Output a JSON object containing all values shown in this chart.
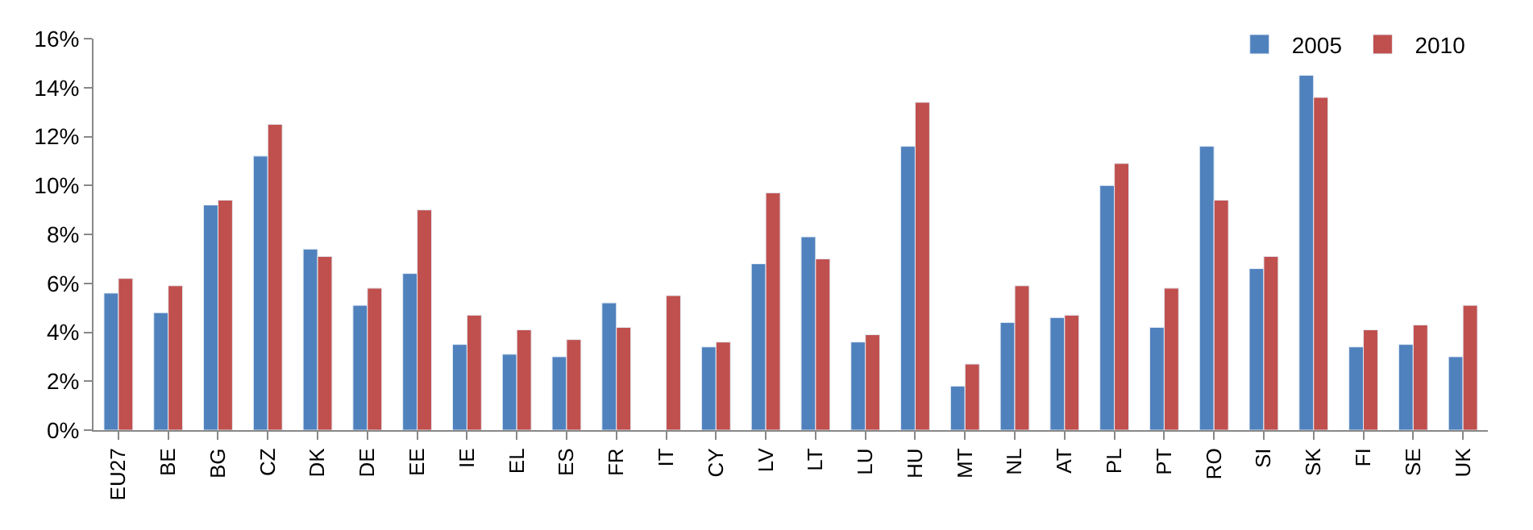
{
  "chart_data": {
    "type": "bar",
    "categories": [
      "EU27",
      "BE",
      "BG",
      "CZ",
      "DK",
      "DE",
      "EE",
      "IE",
      "EL",
      "ES",
      "FR",
      "IT",
      "CY",
      "LV",
      "LT",
      "LU",
      "HU",
      "MT",
      "NL",
      "AT",
      "PL",
      "PT",
      "RO",
      "SI",
      "SK",
      "FI",
      "SE",
      "UK"
    ],
    "series": [
      {
        "name": "2005",
        "color": "#4f81bd",
        "values": [
          5.6,
          4.8,
          9.2,
          11.2,
          7.4,
          5.1,
          6.4,
          3.5,
          3.1,
          3.0,
          5.2,
          null,
          3.4,
          6.8,
          7.9,
          3.6,
          11.6,
          1.8,
          4.4,
          4.6,
          10.0,
          4.2,
          11.6,
          6.6,
          14.5,
          3.4,
          3.5,
          3.0
        ]
      },
      {
        "name": "2010",
        "color": "#c0504d",
        "values": [
          6.2,
          5.9,
          9.4,
          12.5,
          7.1,
          5.8,
          9.0,
          4.7,
          4.1,
          3.7,
          4.2,
          5.5,
          3.6,
          9.7,
          7.0,
          3.9,
          13.4,
          2.7,
          5.9,
          4.7,
          10.9,
          5.8,
          9.4,
          7.1,
          13.6,
          4.1,
          4.3,
          5.1
        ]
      }
    ],
    "ylim": [
      0,
      16
    ],
    "yticks": [
      {
        "value": 0,
        "label": "0%"
      },
      {
        "value": 2,
        "label": "2%"
      },
      {
        "value": 4,
        "label": "4%"
      },
      {
        "value": 6,
        "label": "6%"
      },
      {
        "value": 8,
        "label": "8%"
      },
      {
        "value": 10,
        "label": "10%"
      },
      {
        "value": 12,
        "label": "12%"
      },
      {
        "value": 14,
        "label": "14%"
      },
      {
        "value": 16,
        "label": "16%"
      }
    ],
    "legend": "top right"
  }
}
